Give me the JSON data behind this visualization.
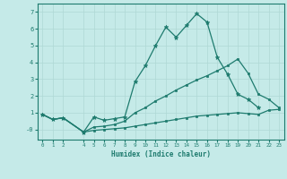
{
  "xlabel": "Humidex (Indice chaleur)",
  "bg_color": "#c5eae8",
  "grid_color": "#afd8d5",
  "line_color": "#1e7b6e",
  "xlim": [
    -0.5,
    23.5
  ],
  "ylim": [
    -0.6,
    7.5
  ],
  "xticks": [
    0,
    1,
    2,
    4,
    5,
    6,
    7,
    8,
    9,
    10,
    11,
    12,
    13,
    14,
    15,
    16,
    17,
    18,
    19,
    20,
    21,
    22,
    23
  ],
  "yticks": [
    0,
    1,
    2,
    3,
    4,
    5,
    6,
    7
  ],
  "ytick_labels": [
    "-0",
    "1",
    "2",
    "3",
    "4",
    "5",
    "6",
    "7"
  ],
  "line1_x": [
    0,
    1,
    2,
    4,
    5,
    6,
    7,
    8,
    9,
    10,
    11,
    12,
    13,
    14,
    15,
    16,
    17,
    18,
    19,
    20,
    21
  ],
  "line1_y": [
    0.9,
    0.6,
    0.7,
    -0.15,
    0.75,
    0.55,
    0.65,
    0.75,
    2.85,
    3.8,
    5.0,
    6.1,
    5.5,
    6.2,
    6.9,
    6.4,
    4.3,
    3.3,
    2.1,
    1.8,
    1.3
  ],
  "line2_x": [
    0,
    1,
    2,
    4,
    5,
    6,
    7,
    8,
    9,
    10,
    11,
    12,
    13,
    14,
    15,
    16,
    17,
    18,
    19,
    20,
    21,
    22,
    23
  ],
  "line2_y": [
    0.9,
    0.6,
    0.7,
    -0.15,
    0.15,
    0.2,
    0.3,
    0.5,
    1.0,
    1.3,
    1.7,
    2.0,
    2.35,
    2.65,
    2.95,
    3.2,
    3.5,
    3.8,
    4.2,
    3.35,
    2.1,
    1.8,
    1.3
  ],
  "line3_x": [
    0,
    1,
    2,
    4,
    5,
    6,
    7,
    8,
    9,
    10,
    11,
    12,
    13,
    14,
    15,
    16,
    17,
    18,
    19,
    20,
    21,
    22,
    23
  ],
  "line3_y": [
    0.9,
    0.6,
    0.7,
    -0.15,
    -0.05,
    0.0,
    0.05,
    0.1,
    0.2,
    0.3,
    0.4,
    0.5,
    0.6,
    0.7,
    0.8,
    0.85,
    0.9,
    0.95,
    1.0,
    0.95,
    0.9,
    1.15,
    1.2
  ]
}
